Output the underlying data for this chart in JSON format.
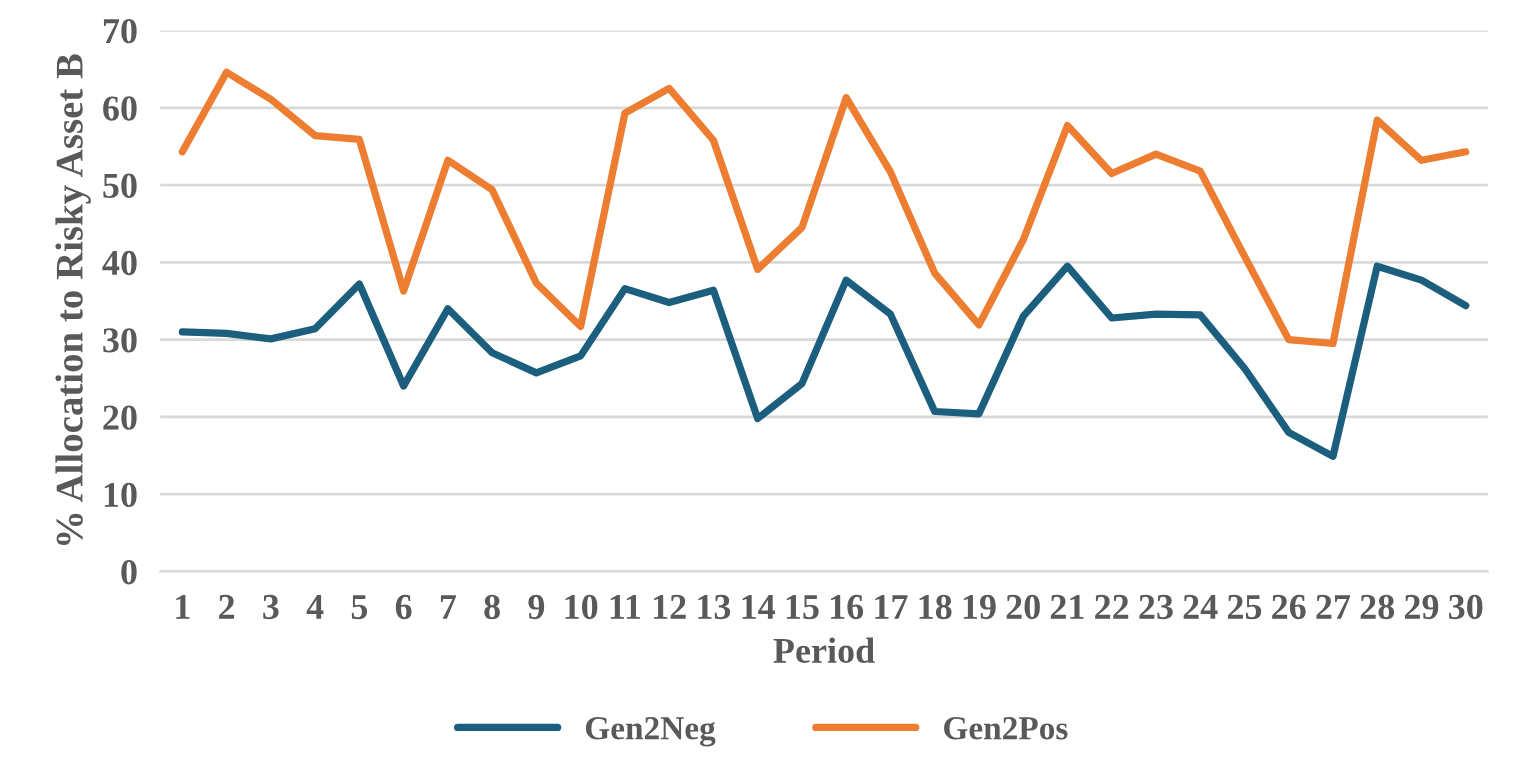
{
  "chart_data": {
    "type": "line",
    "xlabel": "Period",
    "ylabel": "% Allocation to Risky Asset B",
    "categories": [
      "1",
      "2",
      "3",
      "4",
      "5",
      "6",
      "7",
      "8",
      "9",
      "10",
      "11",
      "12",
      "13",
      "14",
      "15",
      "16",
      "17",
      "18",
      "19",
      "20",
      "21",
      "22",
      "23",
      "24",
      "25",
      "26",
      "27",
      "28",
      "29",
      "30"
    ],
    "series": [
      {
        "name": "Gen2Neg",
        "color": "#1b5e7e",
        "values": [
          31,
          30.8,
          30.1,
          31.4,
          37.2,
          24,
          34,
          28.3,
          25.7,
          27.9,
          36.6,
          34.8,
          36.4,
          19.8,
          24.3,
          37.7,
          33.3,
          20.7,
          20.4,
          33,
          39.5,
          32.8,
          33.3,
          33.2,
          26.3,
          18,
          14.9,
          39.5,
          37.7,
          34.4
        ]
      },
      {
        "name": "Gen2Pos",
        "color": "#ed7d31",
        "values": [
          54.3,
          64.6,
          61.1,
          56.4,
          55.9,
          36.3,
          53.2,
          49.4,
          37.3,
          31.7,
          59.3,
          62.5,
          55.8,
          39.1,
          44.5,
          61.3,
          51.7,
          38.6,
          31.9,
          42.9,
          57.7,
          51.5,
          54,
          51.8,
          40.8,
          30,
          29.5,
          58.4,
          53.2,
          54.3
        ]
      }
    ],
    "ylim": [
      0,
      70
    ],
    "yticks": [
      0,
      10,
      20,
      30,
      40,
      50,
      60,
      70
    ],
    "grid": "y",
    "legend": "bottom",
    "marker": "none",
    "line_style": "solid"
  }
}
